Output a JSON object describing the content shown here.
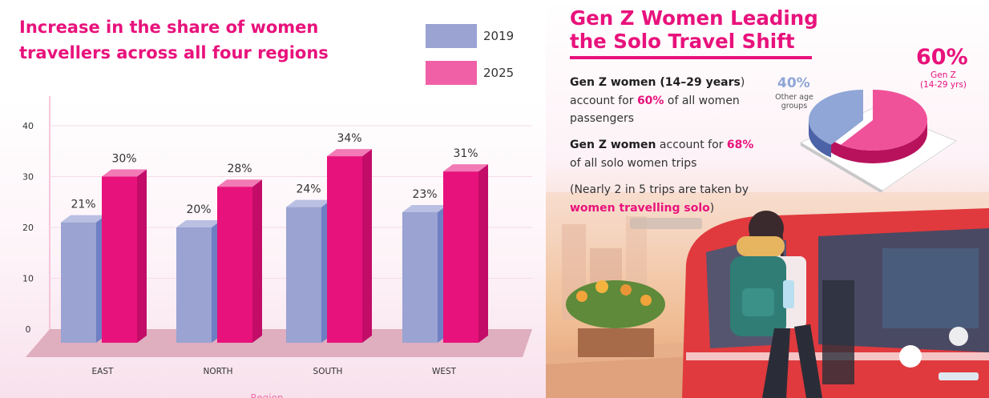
{
  "chart_data": {
    "type": "bar",
    "title": "Increase in the share of women travellers across all four regions",
    "categories": [
      "EAST",
      "NORTH",
      "SOUTH",
      "WEST"
    ],
    "series": [
      {
        "name": "2019",
        "values": [
          21,
          20,
          24,
          23
        ],
        "labels": [
          "21%",
          "20%",
          "24%",
          "23%"
        ]
      },
      {
        "name": "2025",
        "values": [
          30,
          28,
          34,
          31
        ],
        "labels": [
          "30%",
          "28%",
          "34%",
          "31%"
        ]
      }
    ],
    "y_ticks": [
      "0",
      "10",
      "20",
      "30",
      "40"
    ],
    "ylim": [
      0,
      40
    ],
    "xlabel": "Region",
    "ylabel": "",
    "grid": true,
    "legend_position": "top-right"
  },
  "colors": {
    "series_2019": "#9aa3d2",
    "series_2025": "#e8127c",
    "accent": "#e8127c",
    "pie_gen_z": "#f0529a",
    "pie_other": "#8fa6d6"
  },
  "right": {
    "title_line1": "Gen Z Women Leading",
    "title_line2": "the Solo Travel Shift",
    "p1_bold": "Gen Z women (14–29 years",
    "p1_close": ")",
    "p1_mid": "account for",
    "p1_pct": "60%",
    "p1_end": "of all women passengers",
    "p2_bold": "Gen Z women",
    "p2_mid": "account for",
    "p2_pct": "68%",
    "p2_end": "of all solo women trips",
    "p3_start": "(Nearly 2 in 5 trips are taken by",
    "p3_pink": "women travelling solo",
    "p3_end": ")"
  },
  "pie": {
    "gen_z_pct": "60%",
    "gen_z_label": "Gen Z",
    "gen_z_sub": "(14-29 yrs)",
    "other_pct": "40%",
    "other_label": "Other age groups",
    "gen_z_value": 60,
    "other_value": 40
  }
}
